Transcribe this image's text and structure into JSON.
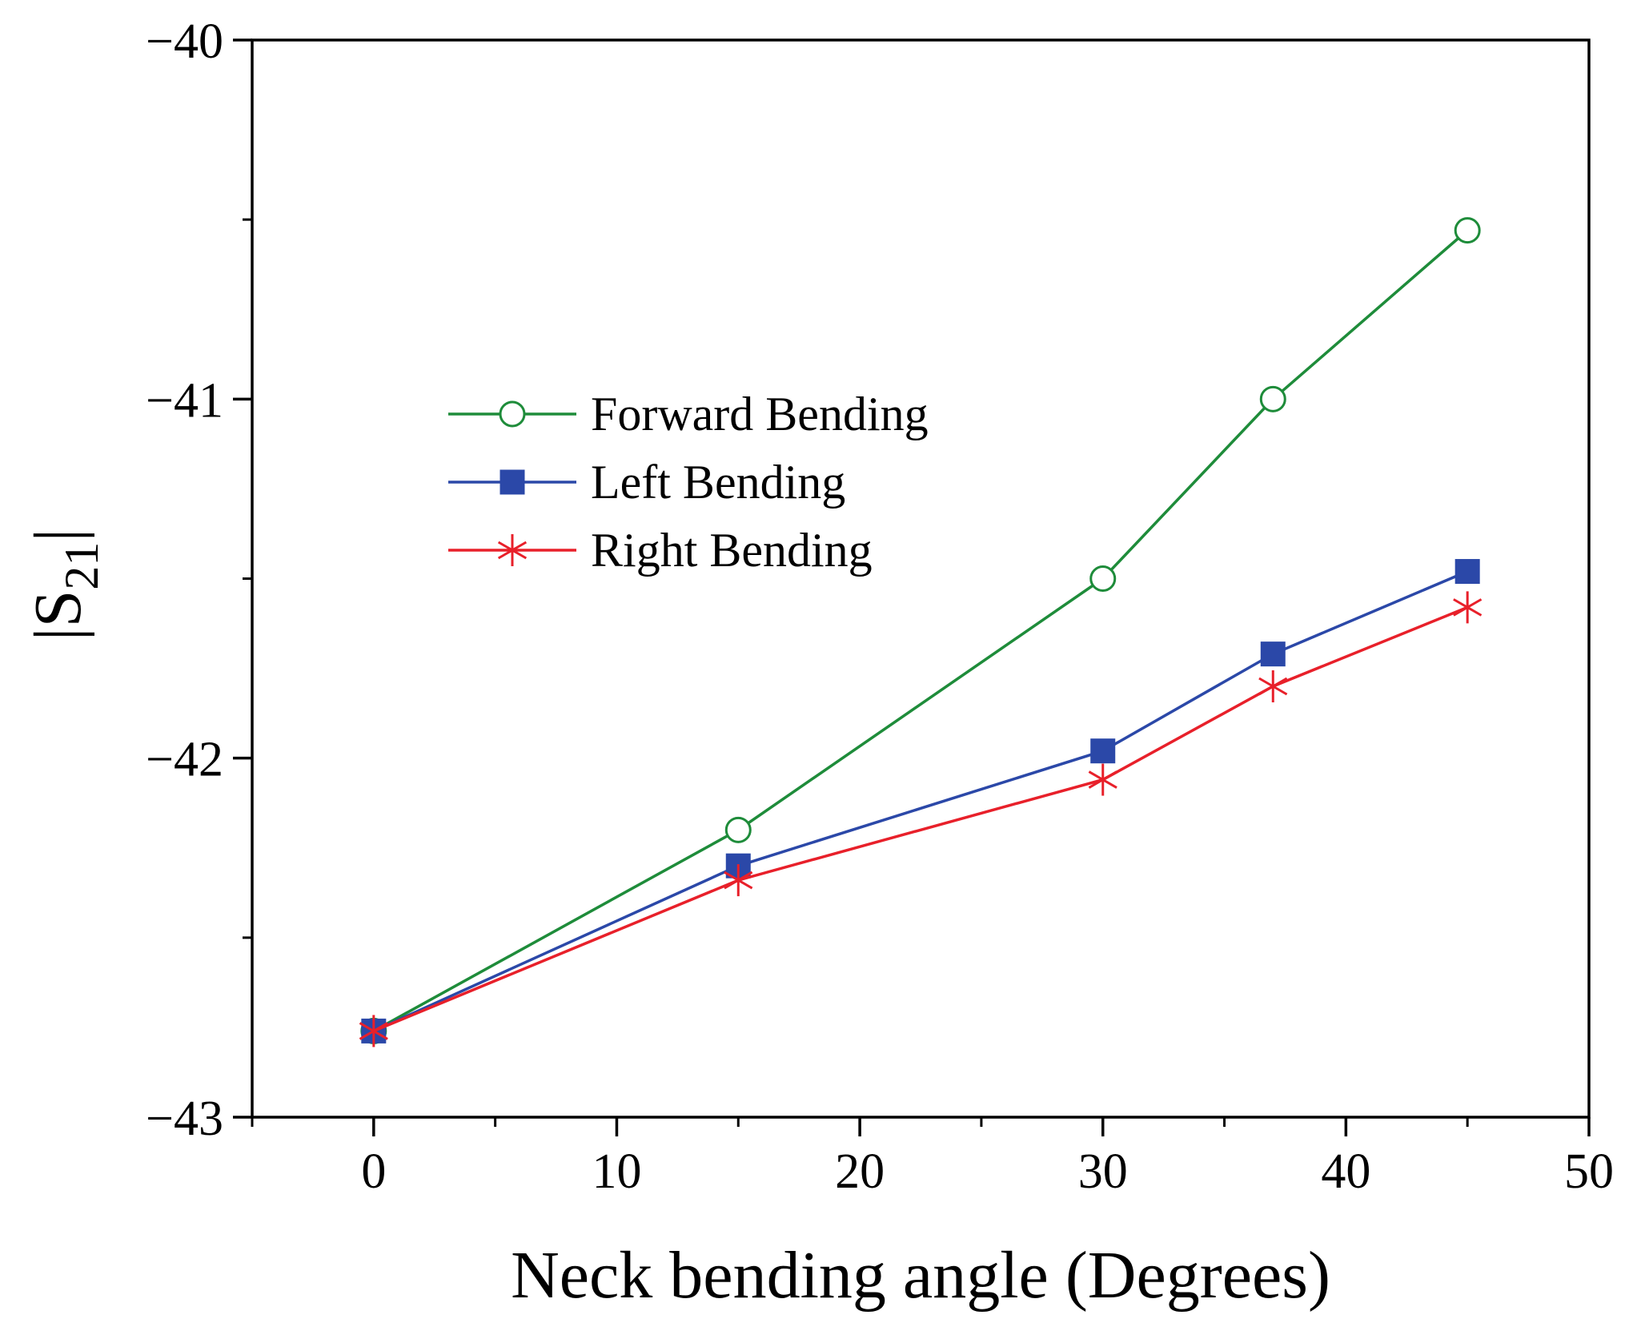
{
  "chart_data": {
    "type": "line",
    "title": "",
    "xlabel": "Neck bending angle (Degrees)",
    "ylabel": {
      "main": "|S",
      "subscript": "21",
      "close": "|"
    },
    "xlim": [
      -5,
      50
    ],
    "ylim": [
      -43,
      -40
    ],
    "xticks": [
      0,
      10,
      20,
      30,
      40,
      50
    ],
    "xtick_labels": [
      "0",
      "10",
      "20",
      "30",
      "40",
      "50"
    ],
    "yticks": [
      -43,
      -42,
      -41,
      -40
    ],
    "ytick_labels": [
      "−43",
      "−42",
      "−41",
      "−40"
    ],
    "x_minor_step": 5,
    "y_minor_step": 0.5,
    "grid": false,
    "legend_position": "upper-left inside",
    "series": [
      {
        "name": "Forward Bending",
        "color": "#1e8c3a",
        "marker": "open-circle",
        "x": [
          0,
          15,
          30,
          37,
          45
        ],
        "y": [
          -42.76,
          -42.2,
          -41.5,
          -41.0,
          -40.53
        ]
      },
      {
        "name": "Left Bending",
        "color": "#2b48a8",
        "marker": "filled-square",
        "x": [
          0,
          15,
          30,
          37,
          45
        ],
        "y": [
          -42.76,
          -42.3,
          -41.98,
          -41.71,
          -41.48
        ]
      },
      {
        "name": "Right Bending",
        "color": "#e8202a",
        "marker": "asterisk",
        "x": [
          0,
          15,
          30,
          37,
          45
        ],
        "y": [
          -42.76,
          -42.34,
          -42.06,
          -41.8,
          -41.58
        ]
      }
    ]
  }
}
